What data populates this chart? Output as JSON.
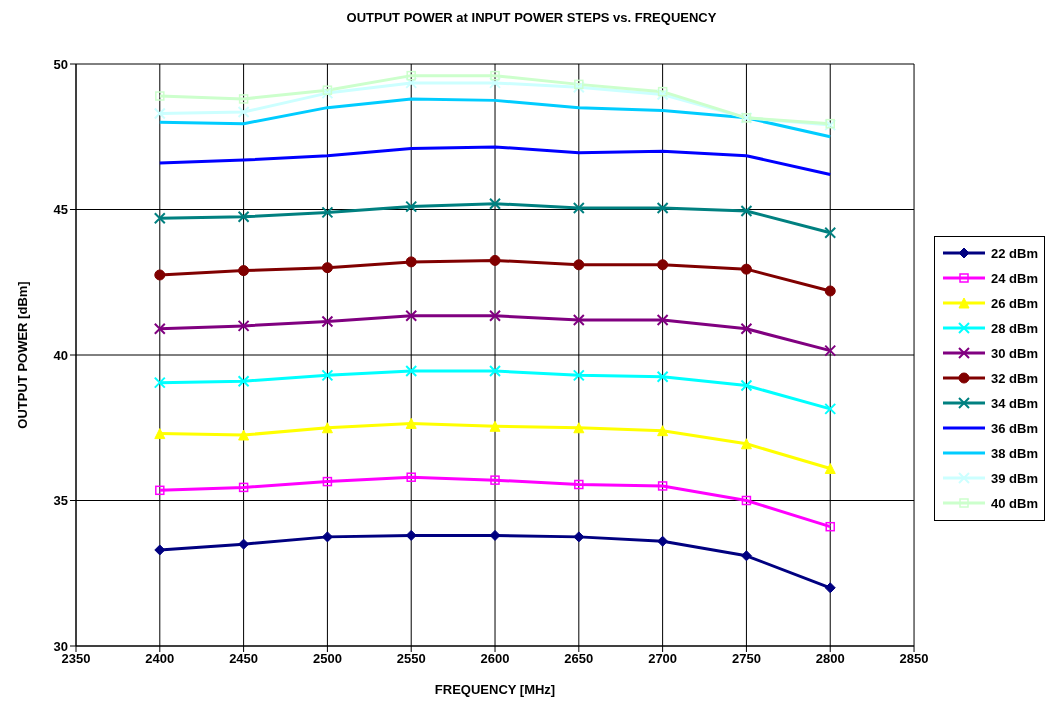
{
  "chart_data": {
    "type": "line",
    "title": "OUTPUT POWER at INPUT POWER STEPS vs. FREQUENCY",
    "xlabel": "FREQUENCY [MHz]",
    "ylabel": "OUTPUT POWER [dBm]",
    "x": [
      2400,
      2450,
      2500,
      2550,
      2600,
      2650,
      2700,
      2750,
      2800
    ],
    "xlim": [
      2350,
      2850
    ],
    "xticks": [
      2350,
      2400,
      2450,
      2500,
      2550,
      2600,
      2650,
      2700,
      2750,
      2800,
      2850
    ],
    "ylim": [
      30,
      50
    ],
    "yticks": [
      30,
      35,
      40,
      45,
      50
    ],
    "grid": true,
    "legend": "right",
    "line_style": "solid",
    "series": [
      {
        "name": "22 dBm",
        "color": "#000080",
        "marker": "diamond",
        "values": [
          33.3,
          33.5,
          33.75,
          33.8,
          33.8,
          33.75,
          33.6,
          33.1,
          32.0
        ]
      },
      {
        "name": "24 dBm",
        "color": "#ff00ff",
        "marker": "square",
        "values": [
          35.35,
          35.45,
          35.65,
          35.8,
          35.7,
          35.55,
          35.5,
          35.0,
          34.1
        ]
      },
      {
        "name": "26 dBm",
        "color": "#ffff00",
        "marker": "triangle",
        "values": [
          37.3,
          37.25,
          37.5,
          37.65,
          37.55,
          37.5,
          37.4,
          36.95,
          36.1
        ]
      },
      {
        "name": "28 dBm",
        "color": "#00ffff",
        "marker": "cross",
        "values": [
          39.05,
          39.1,
          39.3,
          39.45,
          39.45,
          39.3,
          39.25,
          38.95,
          38.15
        ]
      },
      {
        "name": "30 dBm",
        "color": "#800080",
        "marker": "cross",
        "values": [
          40.9,
          41.0,
          41.15,
          41.35,
          41.35,
          41.2,
          41.2,
          40.9,
          40.15
        ]
      },
      {
        "name": "32 dBm",
        "color": "#800000",
        "marker": "circle",
        "values": [
          42.75,
          42.9,
          43.0,
          43.2,
          43.25,
          43.1,
          43.1,
          42.95,
          42.2
        ]
      },
      {
        "name": "34 dBm",
        "color": "#008080",
        "marker": "cross",
        "values": [
          44.7,
          44.75,
          44.9,
          45.1,
          45.2,
          45.05,
          45.05,
          44.95,
          44.2
        ]
      },
      {
        "name": "36 dBm",
        "color": "#0000ff",
        "marker": "none",
        "values": [
          46.6,
          46.7,
          46.85,
          47.1,
          47.15,
          46.95,
          47.0,
          46.85,
          46.2
        ]
      },
      {
        "name": "38 dBm",
        "color": "#00ccff",
        "marker": "none",
        "values": [
          48.0,
          47.95,
          48.5,
          48.8,
          48.75,
          48.5,
          48.4,
          48.15,
          47.5
        ]
      },
      {
        "name": "39 dBm",
        "color": "#ccffff",
        "marker": "cross",
        "values": [
          48.3,
          48.35,
          49.0,
          49.35,
          49.35,
          49.2,
          48.95,
          48.15,
          47.9
        ]
      },
      {
        "name": "40 dBm",
        "color": "#ccffcc",
        "marker": "square",
        "values": [
          48.9,
          48.8,
          49.1,
          49.6,
          49.6,
          49.3,
          49.05,
          48.15,
          47.95
        ]
      }
    ]
  }
}
